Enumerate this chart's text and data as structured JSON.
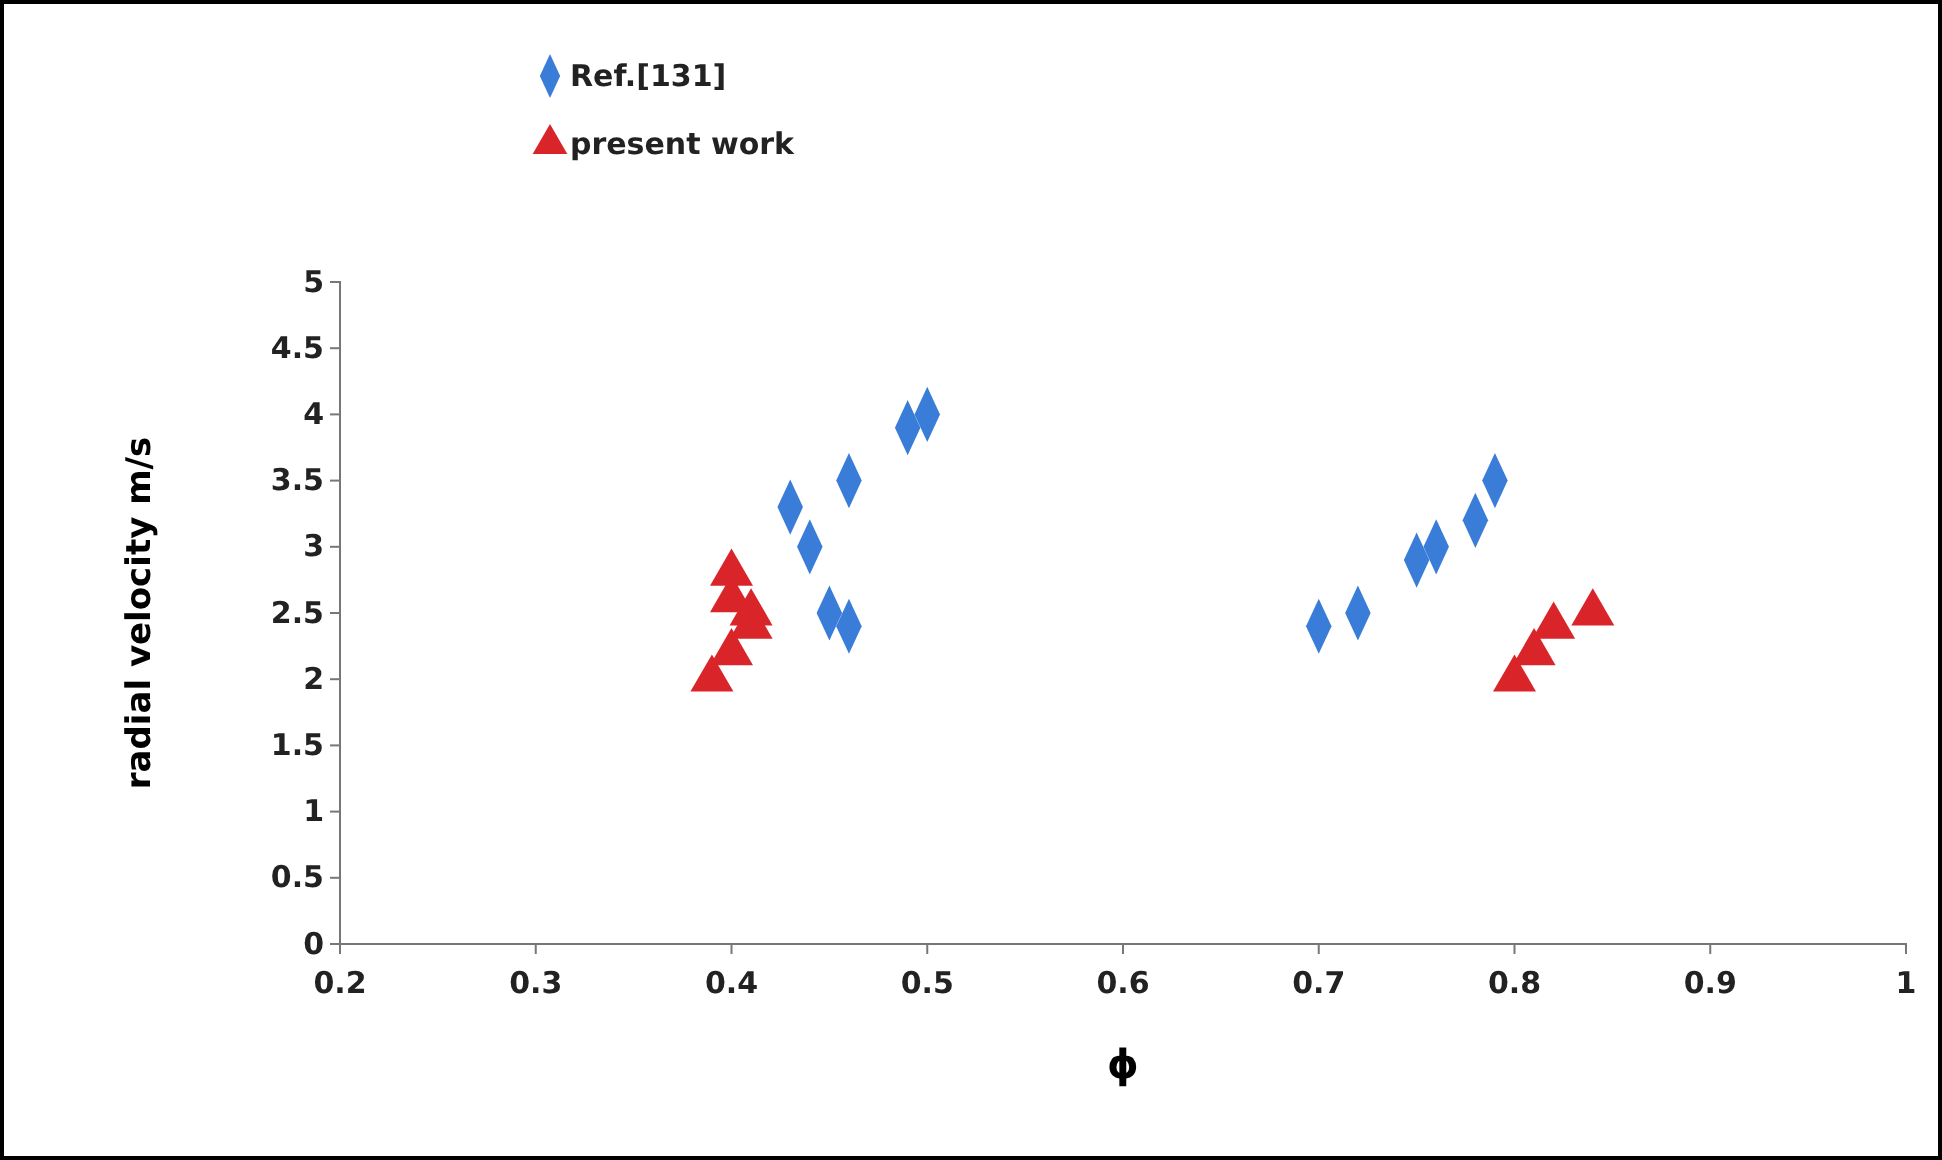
{
  "chart_data": {
    "type": "scatter",
    "xlabel": "ϕ",
    "ylabel": "radial velocity m/s",
    "xlim": [
      0.2,
      1
    ],
    "xticks": [
      0.2,
      0.3,
      0.4,
      0.5,
      0.6,
      0.7,
      0.8,
      0.9,
      1
    ],
    "ylim": [
      0,
      5
    ],
    "yticks": [
      0,
      0.5,
      1,
      1.5,
      2,
      2.5,
      3,
      3.5,
      4,
      4.5,
      5
    ],
    "grid": false,
    "legend": "top left",
    "series": [
      {
        "name": "Ref.[131]",
        "color": "#3a7dd8",
        "marker": "diamond",
        "x": [
          0.43,
          0.44,
          0.45,
          0.46,
          0.46,
          0.49,
          0.5,
          0.7,
          0.72,
          0.75,
          0.76,
          0.78,
          0.79
        ],
        "values": [
          3.3,
          3.0,
          2.5,
          2.4,
          3.5,
          3.9,
          4.0,
          2.4,
          2.5,
          2.9,
          3.0,
          3.2,
          3.5
        ]
      },
      {
        "name": "present work",
        "color": "#d9252a",
        "marker": "triangle",
        "x": [
          0.39,
          0.4,
          0.41,
          0.41,
          0.4,
          0.4,
          0.8,
          0.81,
          0.82,
          0.84
        ],
        "values": [
          2.0,
          2.2,
          2.4,
          2.5,
          2.6,
          2.8,
          2.0,
          2.2,
          2.4,
          2.5
        ]
      }
    ]
  }
}
